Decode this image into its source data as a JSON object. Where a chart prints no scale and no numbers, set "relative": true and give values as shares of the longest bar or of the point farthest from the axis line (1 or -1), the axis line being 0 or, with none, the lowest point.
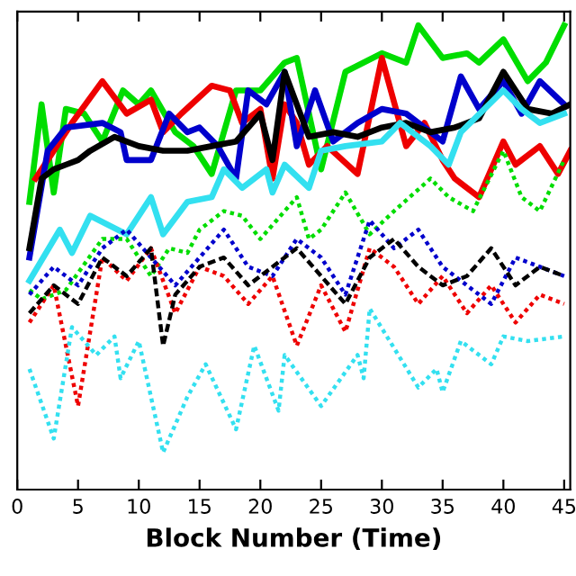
{
  "chart_data": {
    "type": "line",
    "xlabel": "Block Number (Time)",
    "relative": true,
    "xlim": [
      0,
      45.5
    ],
    "xticks": [
      0,
      5,
      10,
      15,
      20,
      25,
      30,
      35,
      40,
      45
    ],
    "grid": false,
    "legend": false,
    "marker": "none",
    "series": [
      {
        "color": "#00dd00",
        "line_style": "solid",
        "x": [
          1,
          2,
          3,
          4,
          5.5,
          7,
          8.7,
          10,
          11,
          13,
          14.5,
          16,
          18,
          20,
          22,
          23,
          25,
          27,
          30,
          32,
          33,
          35,
          37,
          38,
          40,
          42,
          43.5,
          45
        ],
        "values": [
          0.62,
          0.83,
          0.64,
          0.82,
          0.81,
          0.75,
          0.86,
          0.83,
          0.86,
          0.77,
          0.74,
          0.68,
          0.86,
          0.86,
          0.92,
          0.93,
          0.69,
          0.9,
          0.94,
          0.92,
          1.0,
          0.93,
          0.94,
          0.92,
          0.97,
          0.88,
          0.92,
          1.0
        ]
      },
      {
        "color": "#ee0000",
        "line_style": "solid",
        "x": [
          1.5,
          2.5,
          4.5,
          7,
          9,
          11,
          12,
          13.5,
          16,
          17.5,
          18.5,
          20,
          21,
          22,
          23,
          24,
          25.5,
          28,
          30,
          32,
          33.5,
          35,
          36,
          38,
          40,
          41,
          43,
          44.5,
          45.5
        ],
        "values": [
          0.67,
          0.71,
          0.79,
          0.88,
          0.81,
          0.84,
          0.77,
          0.81,
          0.87,
          0.86,
          0.79,
          0.82,
          0.67,
          0.83,
          0.79,
          0.7,
          0.74,
          0.68,
          0.93,
          0.74,
          0.79,
          0.71,
          0.67,
          0.63,
          0.75,
          0.7,
          0.74,
          0.68,
          0.73
        ]
      },
      {
        "color": "#0000cc",
        "line_style": "solid",
        "x": [
          1,
          2.5,
          4,
          7,
          8.5,
          9,
          11,
          12.5,
          14,
          15,
          16.5,
          18,
          19,
          20.5,
          22,
          23,
          24.5,
          26,
          28,
          30,
          32,
          35,
          36.5,
          38,
          40,
          41.5,
          43,
          45
        ],
        "values": [
          0.5,
          0.73,
          0.78,
          0.79,
          0.77,
          0.71,
          0.71,
          0.81,
          0.77,
          0.78,
          0.74,
          0.67,
          0.86,
          0.83,
          0.9,
          0.74,
          0.86,
          0.75,
          0.79,
          0.82,
          0.81,
          0.75,
          0.89,
          0.82,
          0.88,
          0.81,
          0.88,
          0.83
        ]
      },
      {
        "color": "#000000",
        "line_style": "solid",
        "x": [
          1,
          2,
          3,
          4,
          5,
          6,
          8,
          10,
          12,
          14,
          16,
          18,
          20,
          21,
          22,
          24,
          26,
          28,
          30,
          32,
          34,
          36,
          38,
          40,
          42,
          44,
          45.5
        ],
        "values": [
          0.52,
          0.67,
          0.69,
          0.7,
          0.71,
          0.73,
          0.76,
          0.74,
          0.73,
          0.73,
          0.74,
          0.75,
          0.81,
          0.71,
          0.9,
          0.76,
          0.77,
          0.76,
          0.78,
          0.79,
          0.77,
          0.78,
          0.8,
          0.9,
          0.82,
          0.81,
          0.83
        ]
      },
      {
        "color": "#33e0f0",
        "line_style": "solid",
        "x": [
          1,
          3.5,
          4.5,
          6,
          9,
          11,
          12,
          14,
          16,
          17,
          18.5,
          20.5,
          21,
          22,
          24,
          25,
          27,
          30,
          31.5,
          34,
          35.5,
          36.5,
          40,
          41.5,
          43,
          45
        ],
        "values": [
          0.45,
          0.56,
          0.51,
          0.59,
          0.55,
          0.63,
          0.55,
          0.62,
          0.63,
          0.69,
          0.65,
          0.69,
          0.64,
          0.7,
          0.65,
          0.73,
          0.74,
          0.75,
          0.79,
          0.74,
          0.7,
          0.77,
          0.86,
          0.82,
          0.79,
          0.81
        ]
      },
      {
        "color": "#00dd00",
        "line_style": "dotted",
        "x": [
          1,
          2,
          4,
          7,
          9,
          11,
          12.5,
          14,
          15,
          17,
          18.5,
          20,
          22,
          23,
          24,
          25,
          27,
          29,
          31,
          34,
          35.5,
          37.5,
          40,
          41.5,
          43,
          45
        ],
        "values": [
          0.43,
          0.41,
          0.43,
          0.54,
          0.54,
          0.46,
          0.52,
          0.51,
          0.56,
          0.6,
          0.59,
          0.54,
          0.6,
          0.63,
          0.54,
          0.56,
          0.64,
          0.55,
          0.6,
          0.67,
          0.63,
          0.6,
          0.73,
          0.63,
          0.6,
          0.71
        ]
      },
      {
        "color": "#ee0000",
        "line_style": "dotted",
        "x": [
          1,
          3,
          5,
          7,
          9,
          11,
          13,
          15,
          17,
          19,
          21,
          23,
          25,
          27,
          29,
          31,
          33,
          35,
          37,
          39,
          41,
          43,
          45
        ],
        "values": [
          0.36,
          0.44,
          0.18,
          0.5,
          0.45,
          0.52,
          0.38,
          0.48,
          0.46,
          0.4,
          0.46,
          0.31,
          0.44,
          0.34,
          0.52,
          0.48,
          0.4,
          0.46,
          0.38,
          0.44,
          0.36,
          0.42,
          0.4
        ]
      },
      {
        "color": "#0000cc",
        "line_style": "dotted",
        "x": [
          1,
          3,
          5,
          7,
          9,
          11,
          13,
          15,
          17,
          19,
          21,
          23,
          25,
          27,
          29,
          31,
          33,
          35,
          37,
          39,
          41,
          43,
          45
        ],
        "values": [
          0.42,
          0.48,
          0.44,
          0.52,
          0.56,
          0.5,
          0.44,
          0.5,
          0.56,
          0.48,
          0.46,
          0.54,
          0.5,
          0.42,
          0.58,
          0.52,
          0.56,
          0.48,
          0.44,
          0.4,
          0.5,
          0.48,
          0.46
        ]
      },
      {
        "color": "#000000",
        "line_style": "dashed",
        "x": [
          1,
          3,
          5,
          7,
          9,
          11,
          12,
          13,
          15,
          17,
          19,
          21,
          23,
          25,
          27,
          29,
          31,
          33,
          35,
          37,
          39,
          41,
          43,
          45
        ],
        "values": [
          0.38,
          0.44,
          0.4,
          0.5,
          0.46,
          0.52,
          0.31,
          0.42,
          0.48,
          0.5,
          0.44,
          0.48,
          0.52,
          0.46,
          0.4,
          0.5,
          0.54,
          0.48,
          0.44,
          0.46,
          0.52,
          0.44,
          0.48,
          0.46
        ]
      },
      {
        "color": "#33e0f0",
        "line_style": "dotted",
        "x": [
          1,
          3,
          4.5,
          6.5,
          8,
          8.5,
          10,
          12,
          14,
          15.5,
          18,
          19.5,
          21.5,
          22,
          25,
          28,
          28.5,
          29,
          33,
          34.5,
          35,
          36.5,
          39,
          40,
          42,
          45
        ],
        "values": [
          0.26,
          0.11,
          0.35,
          0.29,
          0.33,
          0.24,
          0.32,
          0.08,
          0.2,
          0.27,
          0.13,
          0.31,
          0.17,
          0.29,
          0.18,
          0.29,
          0.24,
          0.39,
          0.22,
          0.26,
          0.21,
          0.32,
          0.27,
          0.33,
          0.32,
          0.33
        ]
      }
    ]
  }
}
